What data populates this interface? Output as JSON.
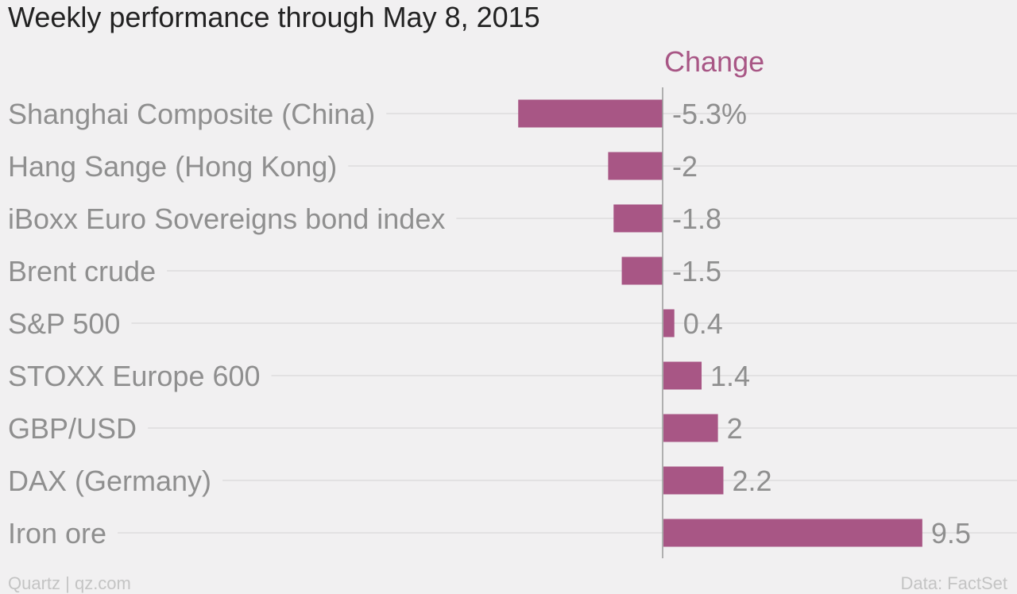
{
  "title": "Weekly performance through May 8, 2015",
  "footer": {
    "source_left": "Quartz | qz.com",
    "source_right": "Data: FactSet"
  },
  "colors": {
    "bar": "#a85685",
    "series_label": "#a85685",
    "gridline": "#dedcdd",
    "axis": "#999999",
    "label": "#8f8f8f"
  },
  "chart_data": {
    "type": "bar",
    "orientation": "horizontal",
    "title": "Weekly performance through May 8, 2015",
    "series": [
      {
        "name": "Change",
        "values": [
          -5.3,
          -2,
          -1.8,
          -1.5,
          0.4,
          1.4,
          2,
          2.2,
          9.5
        ]
      }
    ],
    "categories": [
      "Shanghai Composite (China)",
      "Hang Sange (Hong Kong)",
      "iBoxx Euro Sovereigns bond index",
      "Brent crude",
      "S&P 500",
      "STOXX Europe 600",
      "GBP/USD",
      "DAX (Germany)",
      "Iron ore"
    ],
    "value_labels": [
      "-5.3%",
      "-2",
      "-1.8",
      "-1.5",
      "0.4",
      "1.4",
      "2",
      "2.2",
      "9.5"
    ],
    "xlim": [
      -5.3,
      9.5
    ],
    "grid": true,
    "legend": "top"
  }
}
